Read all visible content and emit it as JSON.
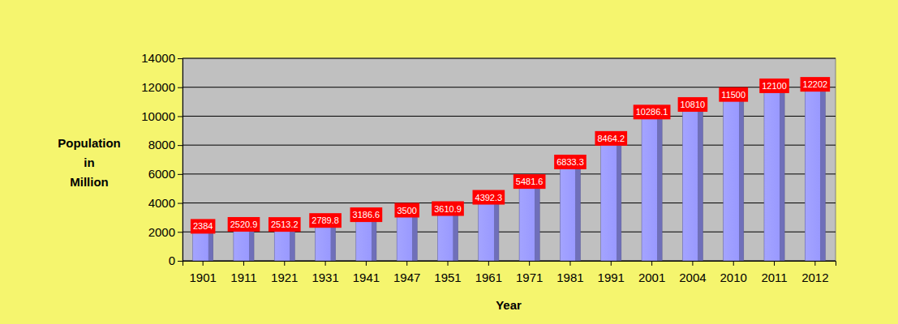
{
  "chart_data": {
    "type": "bar",
    "y_label": "Population in Million",
    "x_label": "Year",
    "categories": [
      "1901",
      "1911",
      "1921",
      "1931",
      "1941",
      "1947",
      "1951",
      "1961",
      "1971",
      "1981",
      "1991",
      "2001",
      "2004",
      "2010",
      "2011",
      "2012"
    ],
    "values": [
      2384,
      2520.9,
      2513.2,
      2789.8,
      3186.6,
      3500,
      3610.9,
      4392.3,
      5481.6,
      6833.3,
      8464.2,
      10286.1,
      10810,
      11500,
      12100,
      12202
    ],
    "color": "#9999ff",
    "ylim": [
      0,
      14000
    ],
    "yticks": [
      0,
      2000,
      4000,
      6000,
      8000,
      10000,
      12000,
      14000
    ],
    "grid": true,
    "data_labels": true
  }
}
